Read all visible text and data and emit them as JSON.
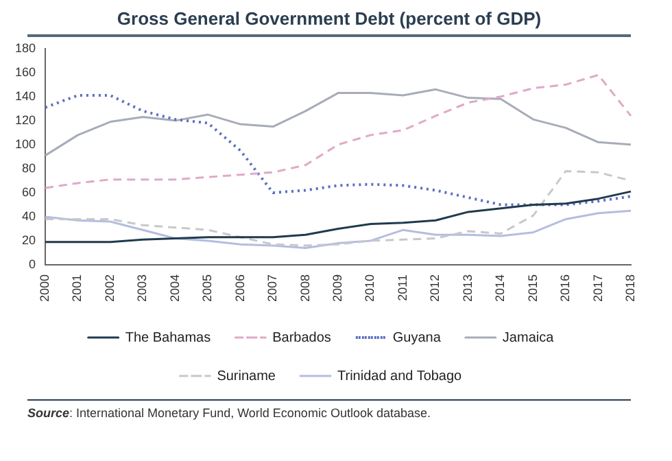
{
  "chart_data": {
    "type": "line",
    "title": "Gross General Government Debt (percent of GDP)",
    "categories": [
      "2000",
      "2001",
      "2002",
      "2003",
      "2004",
      "2005",
      "2006",
      "2007",
      "2008",
      "2009",
      "2010",
      "2011",
      "2012",
      "2013",
      "2014",
      "2015",
      "2016",
      "2017",
      "2018"
    ],
    "series": [
      {
        "name": "The Bahamas",
        "color": "#1f3a4d",
        "line_style": "solid",
        "values": [
          19,
          19,
          19,
          21,
          22,
          23,
          23,
          23,
          25,
          30,
          34,
          35,
          37,
          44,
          47,
          50,
          51,
          55,
          61
        ]
      },
      {
        "name": "Barbados",
        "color": "#e0a9c8",
        "line_style": "dashed",
        "values": [
          64,
          68,
          71,
          71,
          71,
          73,
          75,
          77,
          83,
          100,
          108,
          112,
          124,
          135,
          140,
          147,
          150,
          158,
          124
        ]
      },
      {
        "name": "Guyana",
        "color": "#5b6fc4",
        "line_style": "dotted",
        "values": [
          131,
          141,
          141,
          128,
          121,
          118,
          95,
          60,
          62,
          66,
          67,
          66,
          62,
          56,
          50,
          50,
          50,
          53,
          57
        ]
      },
      {
        "name": "Jamaica",
        "color": "#a7acb8",
        "line_style": "solid",
        "values": [
          91,
          108,
          119,
          123,
          120,
          125,
          117,
          115,
          128,
          143,
          143,
          141,
          146,
          139,
          138,
          121,
          114,
          102,
          100
        ]
      },
      {
        "name": "Suriname",
        "color": "#c8c8c8",
        "line_style": "dashed",
        "values": [
          38,
          38,
          38,
          33,
          31,
          29,
          23,
          17,
          16,
          17,
          20,
          21,
          22,
          28,
          26,
          41,
          78,
          77,
          70
        ]
      },
      {
        "name": "Trinidad and Tobago",
        "color": "#b4bde0",
        "line_style": "solid",
        "values": [
          40,
          37,
          36,
          29,
          22,
          20,
          17,
          16,
          14,
          18,
          20,
          29,
          25,
          25,
          24,
          27,
          38,
          43,
          45
        ]
      }
    ],
    "ylim": [
      0,
      180
    ],
    "yticks": [
      0,
      20,
      40,
      60,
      80,
      100,
      120,
      140,
      160,
      180
    ],
    "grid": false,
    "legend": "bottom",
    "marker": "none",
    "annotations": [
      "Source: International Monetary Fund, World Economic Outlook database."
    ]
  }
}
